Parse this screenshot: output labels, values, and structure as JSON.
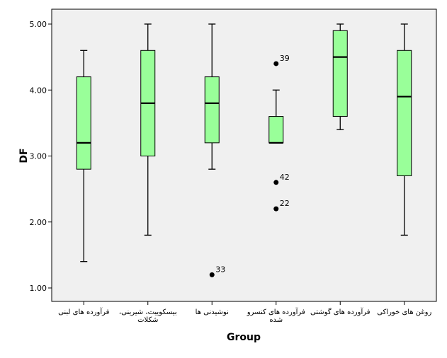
{
  "chart_data": {
    "type": "boxplot",
    "xlabel": "Group",
    "ylabel": "DF",
    "ylim": [
      0.8,
      5.2
    ],
    "yticks": [
      "1.00",
      "2.00",
      "3.00",
      "4.00",
      "5.00"
    ],
    "ytick_values": [
      1,
      2,
      3,
      4,
      5
    ],
    "grid": false,
    "colors": {
      "box_fill": "#99ff99",
      "plot_bg": "#f0f0f0",
      "stroke": "#000000"
    },
    "categories": [
      [
        "فرآورده های لبنی"
      ],
      [
        "بیسکوییت، شیرینی،",
        "شکلات"
      ],
      [
        "نوشیدنی ها"
      ],
      [
        "فرآورده های کنسرو",
        "شده"
      ],
      [
        "فرآورده های گوشتی"
      ],
      [
        "روغن های خوراکی"
      ]
    ],
    "boxes": [
      {
        "whisker_low": 1.4,
        "q1": 2.8,
        "median": 3.2,
        "q3": 4.2,
        "whisker_high": 4.6,
        "outliers": []
      },
      {
        "whisker_low": 1.8,
        "q1": 3.0,
        "median": 3.8,
        "q3": 4.6,
        "whisker_high": 5.0,
        "outliers": []
      },
      {
        "whisker_low": 2.8,
        "q1": 3.2,
        "median": 3.8,
        "q3": 4.2,
        "whisker_high": 5.0,
        "outliers": [
          {
            "value": 1.2,
            "label": "33"
          }
        ]
      },
      {
        "whisker_low": 3.2,
        "q1": 3.2,
        "median": 3.2,
        "q3": 3.6,
        "whisker_high": 4.0,
        "outliers": [
          {
            "value": 4.4,
            "label": "39"
          },
          {
            "value": 2.6,
            "label": "42"
          },
          {
            "value": 2.2,
            "label": "22"
          }
        ]
      },
      {
        "whisker_low": 3.4,
        "q1": 3.6,
        "median": 4.5,
        "q3": 4.9,
        "whisker_high": 5.0,
        "outliers": []
      },
      {
        "whisker_low": 1.8,
        "q1": 2.7,
        "median": 3.9,
        "q3": 4.6,
        "whisker_high": 5.0,
        "outliers": []
      }
    ]
  }
}
